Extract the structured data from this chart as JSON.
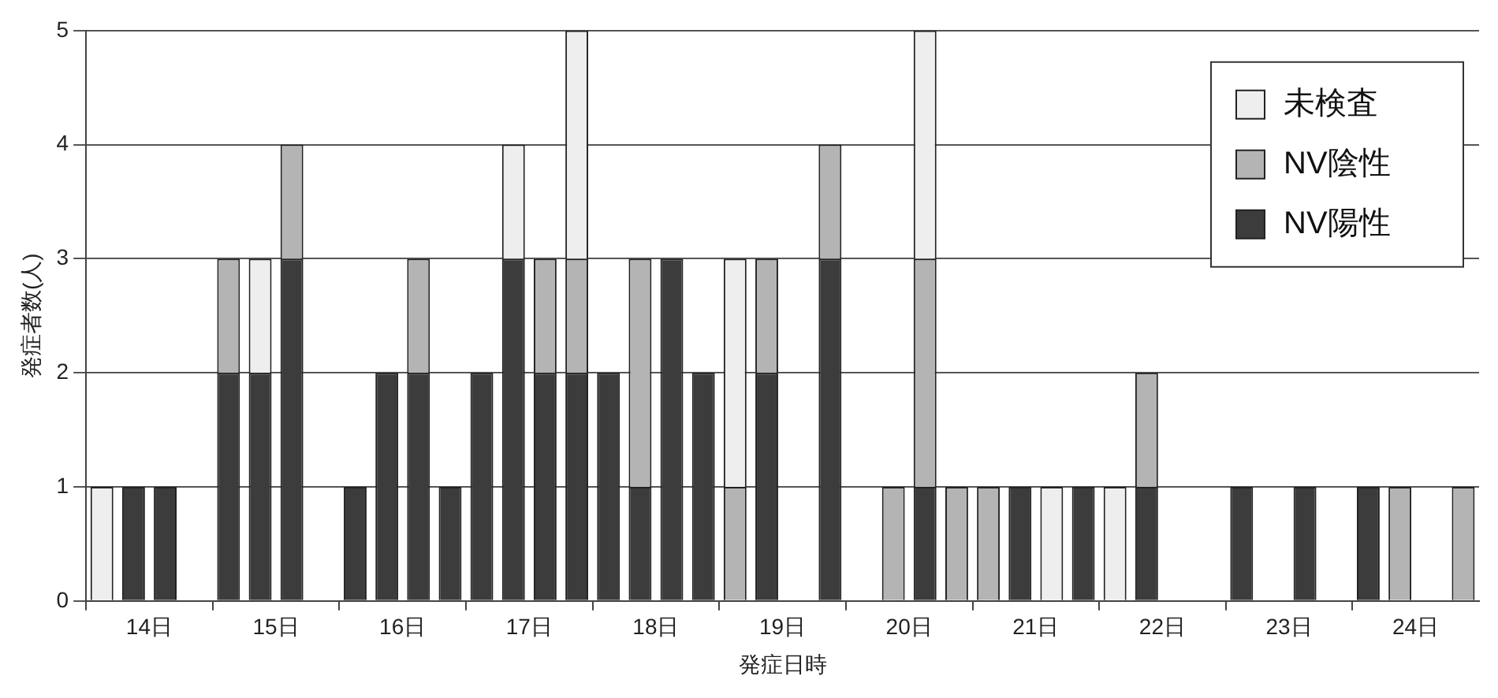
{
  "chart_data": {
    "type": "bar",
    "stacked": true,
    "xlabel": "発症日時",
    "ylabel": "発症者数(人)",
    "categories": [
      null,
      "14日",
      null,
      null,
      null,
      "15日",
      null,
      null,
      null,
      "16日",
      null,
      null,
      null,
      "17日",
      null,
      null,
      null,
      "18日",
      null,
      null,
      null,
      "19日",
      null,
      null,
      null,
      "20日",
      null,
      null,
      null,
      "21日",
      null,
      null,
      null,
      "22日",
      null,
      null,
      null,
      "23日",
      null,
      null,
      null,
      "24日",
      null,
      null
    ],
    "series": [
      {
        "name": "NV陽性",
        "color": "#3c3c3c",
        "values": [
          0,
          1,
          1,
          0,
          2,
          2,
          3,
          0,
          1,
          2,
          2,
          1,
          2,
          3,
          2,
          2,
          2,
          1,
          3,
          2,
          0,
          2,
          0,
          3,
          0,
          0,
          1,
          0,
          0,
          1,
          0,
          1,
          0,
          1,
          0,
          0,
          1,
          0,
          1,
          0,
          1,
          0,
          0,
          0
        ]
      },
      {
        "name": "NV陰性",
        "color": "#b4b4b4",
        "values": [
          0,
          0,
          0,
          0,
          1,
          0,
          1,
          0,
          0,
          0,
          1,
          0,
          0,
          0,
          1,
          1,
          0,
          2,
          0,
          0,
          1,
          1,
          0,
          1,
          0,
          1,
          2,
          1,
          1,
          0,
          0,
          0,
          0,
          1,
          0,
          0,
          0,
          0,
          0,
          0,
          0,
          1,
          0,
          1
        ]
      },
      {
        "name": "未検査",
        "color": "#eeeeee",
        "values": [
          1,
          0,
          0,
          0,
          0,
          1,
          0,
          0,
          0,
          0,
          0,
          0,
          0,
          1,
          0,
          2,
          0,
          0,
          0,
          0,
          2,
          0,
          0,
          0,
          0,
          0,
          2,
          0,
          0,
          0,
          1,
          0,
          1,
          0,
          0,
          0,
          0,
          0,
          0,
          0,
          0,
          0,
          0,
          0
        ]
      }
    ],
    "ylim": [
      0,
      5
    ],
    "yticks": [
      0,
      1,
      2,
      3,
      4,
      5
    ],
    "grid": "y",
    "legend": "top right"
  }
}
